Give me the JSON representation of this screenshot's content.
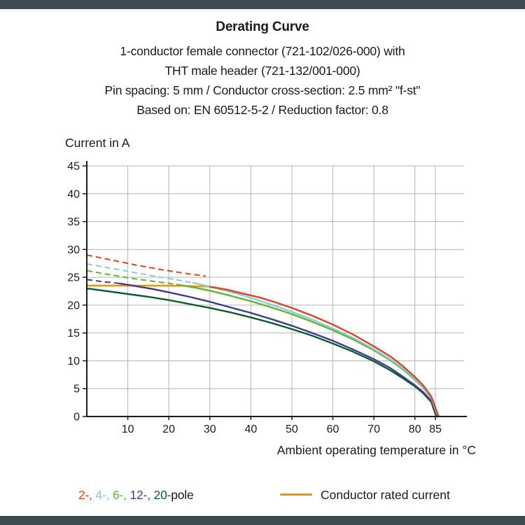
{
  "header": {
    "title": "Derating Curve",
    "subtitle_lines": [
      "1-conductor female connector (721-102/026-000) with",
      "THT male header (721-132/001-000)",
      "Pin spacing: 5 mm / Conductor cross-section: 2.5 mm² \"f-st\"",
      "Based on: EN 60512-5-2 / Reduction factor: 0.8"
    ]
  },
  "chart_data": {
    "type": "line",
    "title": "Derating Curve",
    "xlabel": "Ambient operating temperature in °C",
    "ylabel": "Current in A",
    "xlim": [
      0,
      92
    ],
    "ylim": [
      0,
      45
    ],
    "x_ticks": [
      10,
      20,
      30,
      40,
      50,
      60,
      70,
      80,
      85
    ],
    "y_ticks": [
      0,
      5,
      10,
      15,
      20,
      25,
      30,
      35,
      40,
      45
    ],
    "grid": true,
    "legend_position": "bottom",
    "series": [
      {
        "name": "conductor-rated-current",
        "color": "#f39200",
        "segments": [
          {
            "style": "solid",
            "points": [
              [
                0,
                23.5
              ],
              [
                18,
                23.5
              ],
              [
                24,
                23.45
              ],
              [
                30,
                23.3
              ]
            ]
          }
        ]
      },
      {
        "name": "20-pole",
        "color": "#0b5d2d",
        "segments": [
          {
            "style": "solid",
            "points": [
              [
                0,
                23.0
              ],
              [
                5,
                22.5
              ],
              [
                10,
                22.0
              ],
              [
                15,
                21.5
              ],
              [
                20,
                20.9
              ],
              [
                25,
                20.2
              ],
              [
                30,
                19.5
              ],
              [
                35,
                18.7
              ],
              [
                40,
                17.8
              ],
              [
                45,
                16.8
              ],
              [
                50,
                15.7
              ],
              [
                55,
                14.5
              ],
              [
                60,
                13.1
              ],
              [
                65,
                11.6
              ],
              [
                70,
                9.9
              ],
              [
                74,
                8.3
              ],
              [
                77,
                6.9
              ],
              [
                80,
                5.4
              ],
              [
                82,
                4.2
              ],
              [
                84,
                2.6
              ],
              [
                85.2,
                0
              ]
            ]
          }
        ]
      },
      {
        "name": "12-pole",
        "color": "#3c3c8f",
        "segments": [
          {
            "style": "dashed",
            "points": [
              [
                0,
                24.6
              ],
              [
                4,
                24.2
              ],
              [
                8,
                23.9
              ]
            ]
          },
          {
            "style": "solid",
            "points": [
              [
                8,
                23.9
              ],
              [
                12,
                23.4
              ],
              [
                16,
                22.9
              ],
              [
                20,
                22.3
              ],
              [
                25,
                21.5
              ],
              [
                30,
                20.6
              ],
              [
                35,
                19.6
              ],
              [
                40,
                18.6
              ],
              [
                45,
                17.5
              ],
              [
                50,
                16.3
              ],
              [
                55,
                15.0
              ],
              [
                60,
                13.6
              ],
              [
                65,
                12.0
              ],
              [
                70,
                10.3
              ],
              [
                74,
                8.7
              ],
              [
                77,
                7.2
              ],
              [
                80,
                5.6
              ],
              [
                82,
                4.4
              ],
              [
                84,
                2.8
              ],
              [
                85.4,
                0
              ]
            ]
          }
        ]
      },
      {
        "name": "6-pole",
        "color": "#64b22d",
        "segments": [
          {
            "style": "dashed",
            "points": [
              [
                0,
                26.2
              ],
              [
                6,
                25.4
              ],
              [
                12,
                24.7
              ],
              [
                18,
                24.1
              ],
              [
                22,
                23.7
              ]
            ]
          },
          {
            "style": "solid",
            "points": [
              [
                22,
                23.7
              ],
              [
                26,
                23.2
              ],
              [
                30,
                22.6
              ],
              [
                35,
                21.7
              ],
              [
                40,
                20.7
              ],
              [
                45,
                19.6
              ],
              [
                50,
                18.4
              ],
              [
                55,
                17.0
              ],
              [
                60,
                15.5
              ],
              [
                65,
                13.8
              ],
              [
                70,
                11.9
              ],
              [
                74,
                10.1
              ],
              [
                77,
                8.5
              ],
              [
                80,
                6.6
              ],
              [
                82,
                5.2
              ],
              [
                84,
                3.3
              ],
              [
                85.6,
                0
              ]
            ]
          }
        ]
      },
      {
        "name": "4-pole",
        "color": "#80cde4",
        "segments": [
          {
            "style": "dashed",
            "points": [
              [
                0,
                27.4
              ],
              [
                6,
                26.6
              ],
              [
                12,
                25.8
              ],
              [
                18,
                25.0
              ],
              [
                23,
                24.4
              ],
              [
                26,
                24.0
              ]
            ]
          },
          {
            "style": "solid",
            "points": [
              [
                26,
                24.0
              ],
              [
                30,
                23.3
              ],
              [
                35,
                22.4
              ],
              [
                40,
                21.3
              ],
              [
                45,
                20.1
              ],
              [
                50,
                18.8
              ],
              [
                55,
                17.4
              ],
              [
                60,
                15.8
              ],
              [
                65,
                14.1
              ],
              [
                70,
                12.1
              ],
              [
                74,
                10.3
              ],
              [
                77,
                8.7
              ],
              [
                80,
                6.8
              ],
              [
                82,
                5.3
              ],
              [
                84,
                3.4
              ],
              [
                85.7,
                0
              ]
            ]
          }
        ]
      },
      {
        "name": "2-pole",
        "color": "#e6401f",
        "segments": [
          {
            "style": "dashed",
            "points": [
              [
                0,
                29.0
              ],
              [
                6,
                28.1
              ],
              [
                12,
                27.2
              ],
              [
                18,
                26.4
              ],
              [
                24,
                25.7
              ],
              [
                29,
                25.2
              ]
            ]
          },
          {
            "style": "solid",
            "points": [
              [
                30,
                23.3
              ],
              [
                34,
                22.8
              ],
              [
                38,
                22.1
              ],
              [
                42,
                21.4
              ],
              [
                46,
                20.5
              ],
              [
                50,
                19.5
              ],
              [
                55,
                18.1
              ],
              [
                60,
                16.5
              ],
              [
                65,
                14.7
              ],
              [
                70,
                12.6
              ],
              [
                74,
                10.8
              ],
              [
                77,
                9.1
              ],
              [
                80,
                7.1
              ],
              [
                82,
                5.6
              ],
              [
                84,
                3.6
              ],
              [
                85.8,
                0
              ]
            ]
          }
        ]
      }
    ]
  },
  "axis_titles": {
    "y": "Current in A",
    "x": "Ambient operating temperature in °C"
  },
  "legend": {
    "pole_items": [
      {
        "label": "2-",
        "color": "#e6401f"
      },
      {
        "label": "4-",
        "color": "#80cde4"
      },
      {
        "label": "6-",
        "color": "#64b22d"
      },
      {
        "label": "12-",
        "color": "#3c3c8f"
      },
      {
        "label": "20-",
        "color": "#0b5d2d"
      }
    ],
    "pole_suffix": "pole",
    "rated": {
      "label": "Conductor rated current",
      "color": "#f39200"
    }
  },
  "colors": {
    "accent_bar": "#3c4b54",
    "grid": "#b4b4b4",
    "axis": "#1a1a1a",
    "text": "#1a1a1a",
    "background": "#ffffff"
  }
}
